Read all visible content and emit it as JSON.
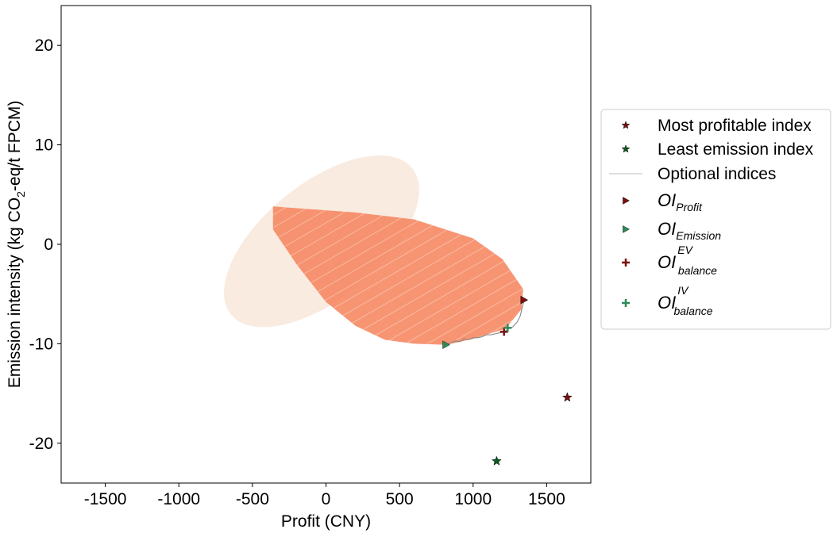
{
  "chart_data": {
    "type": "scatter",
    "xlabel": "Profit (CNY)",
    "ylabel_parts": {
      "before": "Emission intensity (kg CO",
      "sub": "2",
      "after": "-eq/t FPCM)"
    },
    "xlim": [
      -1800,
      1800
    ],
    "ylim": [
      -24,
      24
    ],
    "x_ticks": [
      -1500,
      -1000,
      -500,
      0,
      500,
      1000,
      1500
    ],
    "y_ticks": [
      -20,
      -10,
      0,
      10,
      20
    ],
    "x_tick_labels": [
      "-1500",
      "-1000",
      "-500",
      "0",
      "500",
      "1000",
      "1500"
    ],
    "y_tick_labels": [
      "-20",
      "-10",
      "0",
      "10",
      "20"
    ],
    "legend_position": "right",
    "background_region": {
      "shape": "ellipse",
      "center": [
        -30,
        0.3
      ],
      "semi_axes": [
        1870,
        11.7
      ],
      "rotation_deg": -51,
      "color": "#f9ebe0"
    },
    "dense_region": {
      "color": "#f6825a",
      "boundary": [
        [
          -360,
          3.8
        ],
        [
          200,
          3.2
        ],
        [
          600,
          2.5
        ],
        [
          1000,
          0.6
        ],
        [
          1200,
          -1.5
        ],
        [
          1340,
          -4.5
        ],
        [
          1330,
          -6.5
        ],
        [
          1220,
          -8.5
        ],
        [
          1000,
          -9.5
        ],
        [
          820,
          -10.1
        ],
        [
          600,
          -10.0
        ],
        [
          400,
          -9.6
        ],
        [
          200,
          -8.2
        ],
        [
          0,
          -5.8
        ],
        [
          -200,
          -2.0
        ],
        [
          -360,
          1.5
        ]
      ]
    },
    "series": [
      {
        "name": "Most profitable index",
        "marker": "star",
        "color": "#7a1010",
        "points": [
          [
            1640,
            -15.4
          ]
        ]
      },
      {
        "name": "Least emission index",
        "marker": "star",
        "color": "#0b5a1e",
        "points": [
          [
            1160,
            -21.8
          ]
        ]
      },
      {
        "name": "Optional indices",
        "marker": "line",
        "color": "#808080",
        "points": [
          [
            820,
            -10.1
          ],
          [
            850,
            -9.9
          ],
          [
            880,
            -9.7
          ],
          [
            910,
            -9.8
          ],
          [
            940,
            -9.5
          ],
          [
            970,
            -9.6
          ],
          [
            1000,
            -9.4
          ],
          [
            1030,
            -9.4
          ],
          [
            1060,
            -9.3
          ],
          [
            1090,
            -9.1
          ],
          [
            1120,
            -9.1
          ],
          [
            1150,
            -9.0
          ],
          [
            1180,
            -8.9
          ],
          [
            1210,
            -8.8
          ],
          [
            1240,
            -8.5
          ],
          [
            1270,
            -8.3
          ],
          [
            1300,
            -7.8
          ],
          [
            1320,
            -7.2
          ],
          [
            1340,
            -6.0
          ],
          [
            1345,
            -5.6
          ]
        ]
      },
      {
        "name": "OI_Profit",
        "marker": "triangle-right",
        "color": "#7a1010",
        "points": [
          [
            1345,
            -5.6
          ]
        ]
      },
      {
        "name": "OI_Emission",
        "marker": "triangle-right",
        "color": "#2e8b57",
        "points": [
          [
            815,
            -10.1
          ]
        ]
      },
      {
        "name": "OI_balance^EV",
        "marker": "plus",
        "color": "#7a1010",
        "points": [
          [
            1210,
            -8.8
          ]
        ]
      },
      {
        "name": "OI_balance^IV",
        "marker": "plus",
        "color": "#2e8b57",
        "points": [
          [
            1235,
            -8.4
          ]
        ]
      }
    ]
  },
  "legend": {
    "items": [
      {
        "marker": "star",
        "color": "#7a1010",
        "label": "Most profitable index"
      },
      {
        "marker": "star",
        "color": "#0b5a1e",
        "label": "Least emission index"
      },
      {
        "marker": "line",
        "color": "#d3d3d3",
        "label": "Optional indices"
      },
      {
        "marker": "triangle-right",
        "color": "#7a1010",
        "label_main": "OI",
        "label_sub": "Profit"
      },
      {
        "marker": "triangle-right",
        "color": "#2e8b57",
        "label_main": "OI",
        "label_sub": "Emission"
      },
      {
        "marker": "plus",
        "color": "#7a1010",
        "label_main": "OI",
        "label_sub": "balance",
        "label_sup": "EV"
      },
      {
        "marker": "plus",
        "color": "#2e8b57",
        "label_main": "OI",
        "label_sub": "balance",
        "label_sup": "IV"
      }
    ]
  }
}
